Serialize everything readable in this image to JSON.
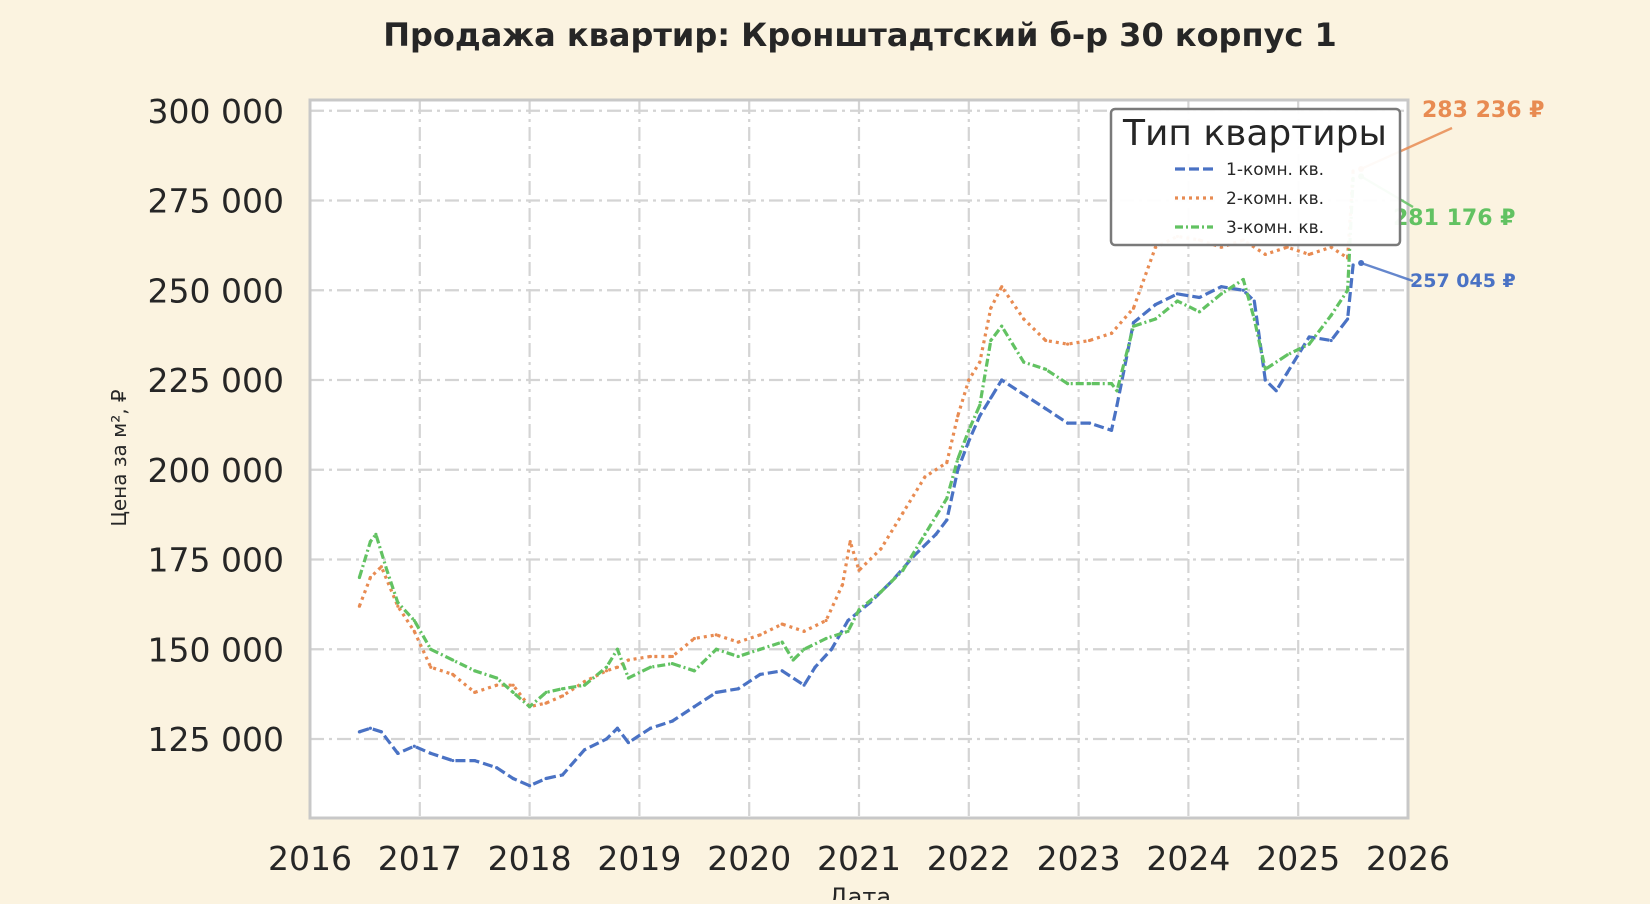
{
  "chart_data": {
    "type": "line",
    "title": "Продажа квартир: Кронштадтский б-р 30 корпус 1",
    "xlabel": "Дата",
    "ylabel": "Цена за м², ₽",
    "xlim": [
      2016.0,
      2026.0
    ],
    "ylim": [
      103000,
      303000
    ],
    "x_ticks": [
      "2016",
      "2017",
      "2018",
      "2019",
      "2020",
      "2021",
      "2022",
      "2023",
      "2024",
      "2025",
      "2026"
    ],
    "y_ticks": [
      "125 000",
      "150 000",
      "175 000",
      "200 000",
      "225 000",
      "250 000",
      "275 000",
      "300 000"
    ],
    "y_tick_values": [
      125000,
      150000,
      175000,
      200000,
      225000,
      250000,
      275000,
      300000
    ],
    "grid": true,
    "legend": {
      "title": "Тип квартиры",
      "position": "top-right"
    },
    "series": [
      {
        "name": "1-комн. кв.",
        "color": "#4a72c4",
        "dash": "10 4",
        "end_label": "257 045 ₽",
        "x": [
          2016.45,
          2016.55,
          2016.65,
          2016.8,
          2016.95,
          2017.1,
          2017.3,
          2017.5,
          2017.7,
          2017.85,
          2018.0,
          2018.15,
          2018.3,
          2018.5,
          2018.7,
          2018.8,
          2018.9,
          2019.1,
          2019.3,
          2019.5,
          2019.7,
          2019.9,
          2020.1,
          2020.3,
          2020.5,
          2020.6,
          2020.75,
          2020.9,
          2021.1,
          2021.3,
          2021.5,
          2021.7,
          2021.8,
          2021.9,
          2022.0,
          2022.1,
          2022.2,
          2022.3,
          2022.5,
          2022.7,
          2022.9,
          2023.1,
          2023.3,
          2023.35,
          2023.5,
          2023.7,
          2023.9,
          2024.1,
          2024.3,
          2024.5,
          2024.6,
          2024.7,
          2024.8,
          2024.9,
          2025.1,
          2025.3,
          2025.45,
          2025.5
        ],
        "y": [
          127000,
          128000,
          127000,
          121000,
          123000,
          121000,
          119000,
          119000,
          117000,
          114000,
          112000,
          114000,
          115000,
          122000,
          125000,
          128000,
          124000,
          128000,
          130000,
          134000,
          138000,
          139000,
          143000,
          144000,
          140000,
          145000,
          150000,
          158000,
          163000,
          169000,
          176000,
          182000,
          186000,
          200000,
          208000,
          215000,
          220000,
          225000,
          221000,
          217000,
          213000,
          213000,
          211000,
          218000,
          241000,
          246000,
          249000,
          248000,
          251000,
          250000,
          247000,
          225000,
          222000,
          227000,
          237000,
          236000,
          242000,
          257045
        ]
      },
      {
        "name": "2-комн. кв.",
        "color": "#e88b52",
        "dash": "3 4",
        "end_label": "283 236 ₽",
        "x": [
          2016.45,
          2016.55,
          2016.65,
          2016.8,
          2016.95,
          2017.1,
          2017.3,
          2017.5,
          2017.7,
          2017.85,
          2018.0,
          2018.15,
          2018.3,
          2018.5,
          2018.7,
          2018.8,
          2018.9,
          2019.1,
          2019.3,
          2019.5,
          2019.7,
          2019.9,
          2020.1,
          2020.3,
          2020.5,
          2020.7,
          2020.85,
          2020.92,
          2021.0,
          2021.2,
          2021.4,
          2021.6,
          2021.8,
          2021.9,
          2022.0,
          2022.1,
          2022.2,
          2022.3,
          2022.5,
          2022.7,
          2022.9,
          2023.1,
          2023.3,
          2023.5,
          2023.7,
          2023.9,
          2024.1,
          2024.3,
          2024.5,
          2024.7,
          2024.9,
          2025.1,
          2025.3,
          2025.45,
          2025.5
        ],
        "y": [
          162000,
          170000,
          173000,
          162000,
          155000,
          145000,
          143000,
          138000,
          140000,
          140000,
          134000,
          135000,
          137000,
          141000,
          144000,
          145000,
          147000,
          148000,
          148000,
          153000,
          154000,
          152000,
          154000,
          157000,
          155000,
          158000,
          168000,
          180000,
          172000,
          178000,
          188000,
          198000,
          202000,
          215000,
          225000,
          230000,
          245000,
          251000,
          242000,
          236000,
          235000,
          236000,
          238000,
          245000,
          262000,
          265000,
          264000,
          262000,
          264000,
          260000,
          262000,
          260000,
          262000,
          259000,
          283236
        ]
      },
      {
        "name": "3-комн. кв.",
        "color": "#62c262",
        "dash": "8 3 2 3",
        "end_label": "281 176 ₽",
        "x": [
          2016.45,
          2016.55,
          2016.6,
          2016.7,
          2016.8,
          2016.95,
          2017.1,
          2017.3,
          2017.5,
          2017.7,
          2017.85,
          2018.0,
          2018.15,
          2018.3,
          2018.5,
          2018.7,
          2018.8,
          2018.9,
          2019.1,
          2019.3,
          2019.5,
          2019.7,
          2019.9,
          2020.1,
          2020.3,
          2020.4,
          2020.5,
          2020.7,
          2020.9,
          2021.0,
          2021.2,
          2021.4,
          2021.6,
          2021.8,
          2021.9,
          2022.0,
          2022.1,
          2022.2,
          2022.3,
          2022.5,
          2022.7,
          2022.9,
          2023.1,
          2023.3,
          2023.35,
          2023.5,
          2023.7,
          2023.9,
          2024.1,
          2024.3,
          2024.5,
          2024.6,
          2024.7,
          2024.9,
          2025.1,
          2025.3,
          2025.45,
          2025.5
        ],
        "y": [
          170000,
          180000,
          182000,
          172000,
          163000,
          158000,
          150000,
          147000,
          144000,
          142000,
          138000,
          134000,
          138000,
          139000,
          140000,
          145000,
          150000,
          142000,
          145000,
          146000,
          144000,
          150000,
          148000,
          150000,
          152000,
          147000,
          150000,
          153000,
          155000,
          161000,
          166000,
          172000,
          182000,
          192000,
          203000,
          211000,
          218000,
          236000,
          240000,
          230000,
          228000,
          224000,
          224000,
          224000,
          222000,
          240000,
          242000,
          247000,
          244000,
          249000,
          253000,
          242000,
          228000,
          232000,
          235000,
          243000,
          250000,
          281176
        ]
      }
    ]
  }
}
